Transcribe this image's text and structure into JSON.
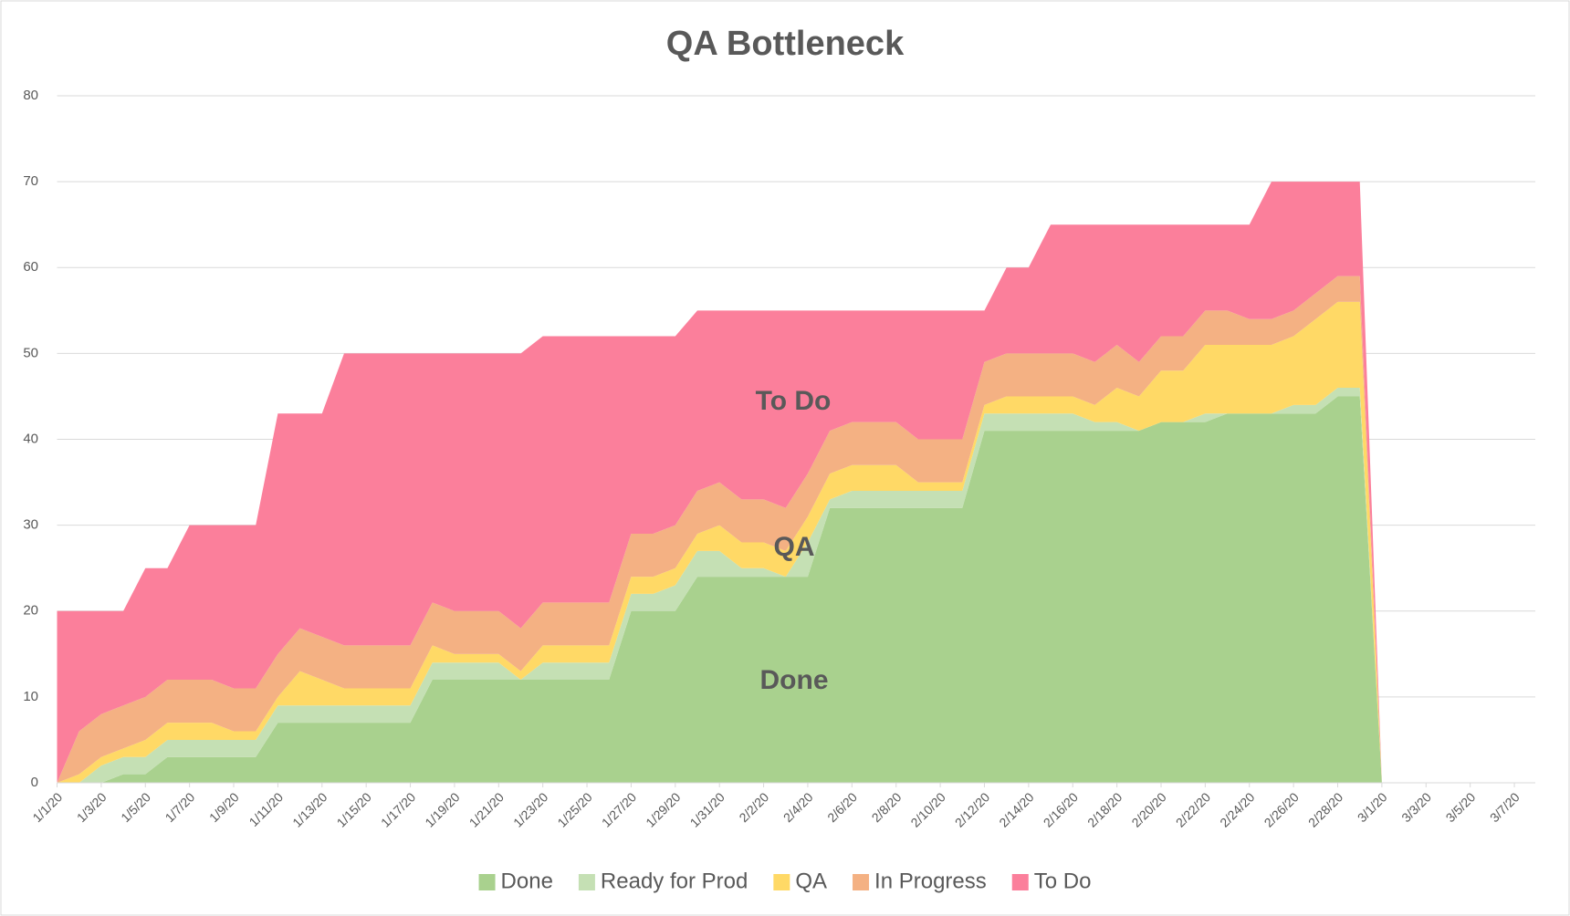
{
  "chart_data": {
    "type": "stacked_area",
    "title": "QA Bottleneck",
    "categories": [
      "1/1/20",
      null,
      "1/3/20",
      null,
      "1/5/20",
      null,
      "1/7/20",
      null,
      "1/9/20",
      null,
      "1/11/20",
      null,
      "1/13/20",
      null,
      "1/15/20",
      null,
      "1/17/20",
      null,
      "1/19/20",
      null,
      "1/21/20",
      null,
      "1/23/20",
      null,
      "1/25/20",
      null,
      "1/27/20",
      null,
      "1/29/20",
      null,
      "1/31/20",
      null,
      "2/2/20",
      null,
      "2/4/20",
      null,
      "2/6/20",
      null,
      "2/8/20",
      null,
      "2/10/20",
      null,
      "2/12/20",
      null,
      "2/14/20",
      null,
      "2/16/20",
      null,
      "2/18/20",
      null,
      "2/20/20",
      null,
      "2/22/20",
      null,
      "2/24/20",
      null,
      "2/26/20",
      null,
      "2/28/20",
      null,
      "3/1/20",
      null,
      "3/3/20",
      null,
      "3/5/20",
      null,
      "3/7/20"
    ],
    "series": [
      {
        "name": "Done",
        "color": "#a9d18e",
        "values": [
          0,
          0,
          0,
          1,
          1,
          3,
          3,
          3,
          3,
          3,
          7,
          7,
          7,
          7,
          7,
          7,
          7,
          12,
          12,
          12,
          12,
          12,
          12,
          12,
          12,
          12,
          20,
          20,
          20,
          24,
          24,
          24,
          24,
          24,
          24,
          32,
          32,
          32,
          32,
          32,
          32,
          32,
          41,
          41,
          41,
          41,
          41,
          41,
          41,
          41,
          42,
          42,
          42,
          43,
          43,
          43,
          43,
          43,
          45,
          45,
          0,
          null,
          null,
          null,
          null,
          null,
          null
        ]
      },
      {
        "name": "Ready for Prod",
        "color": "#c5e0b4",
        "values": [
          0,
          0,
          2,
          2,
          2,
          2,
          2,
          2,
          2,
          2,
          2,
          2,
          2,
          2,
          2,
          2,
          2,
          2,
          2,
          2,
          2,
          0,
          2,
          2,
          2,
          2,
          2,
          2,
          3,
          3,
          3,
          1,
          1,
          0,
          4,
          1,
          2,
          2,
          2,
          2,
          2,
          2,
          2,
          2,
          2,
          2,
          2,
          1,
          1,
          0,
          0,
          0,
          1,
          0,
          0,
          0,
          1,
          1,
          1,
          1,
          0,
          null,
          null,
          null,
          null,
          null,
          null
        ]
      },
      {
        "name": "QA",
        "color": "#ffd966",
        "values": [
          0,
          1,
          1,
          1,
          2,
          2,
          2,
          2,
          1,
          1,
          1,
          4,
          3,
          2,
          2,
          2,
          2,
          2,
          1,
          1,
          1,
          1,
          2,
          2,
          2,
          2,
          2,
          2,
          2,
          2,
          3,
          3,
          3,
          3,
          3,
          3,
          3,
          3,
          3,
          1,
          1,
          1,
          1,
          2,
          2,
          2,
          2,
          2,
          4,
          4,
          6,
          6,
          8,
          8,
          8,
          8,
          8,
          10,
          10,
          10,
          0,
          null,
          null,
          null,
          null,
          null,
          null
        ]
      },
      {
        "name": "In Progress",
        "color": "#f4b183",
        "values": [
          0,
          5,
          5,
          5,
          5,
          5,
          5,
          5,
          5,
          5,
          5,
          5,
          5,
          5,
          5,
          5,
          5,
          5,
          5,
          5,
          5,
          5,
          5,
          5,
          5,
          5,
          5,
          5,
          5,
          5,
          5,
          5,
          5,
          5,
          5,
          5,
          5,
          5,
          5,
          5,
          5,
          5,
          5,
          5,
          5,
          5,
          5,
          5,
          5,
          4,
          4,
          4,
          4,
          4,
          3,
          3,
          3,
          3,
          3,
          3,
          0,
          null,
          null,
          null,
          null,
          null,
          null
        ]
      },
      {
        "name": "To Do",
        "color": "#fb7f9b",
        "values": [
          20,
          14,
          12,
          11,
          15,
          13,
          18,
          18,
          19,
          19,
          28,
          25,
          26,
          34,
          34,
          34,
          34,
          29,
          30,
          30,
          30,
          32,
          31,
          31,
          31,
          31,
          23,
          23,
          22,
          21,
          20,
          22,
          22,
          23,
          19,
          14,
          13,
          13,
          13,
          15,
          15,
          15,
          6,
          10,
          10,
          15,
          15,
          16,
          14,
          16,
          13,
          13,
          10,
          10,
          11,
          16,
          15,
          13,
          11,
          11,
          0,
          null,
          null,
          null,
          null,
          null,
          null
        ]
      }
    ],
    "annotations": [
      "To Do",
      "QA",
      "Done"
    ],
    "ylim": [
      0,
      80
    ],
    "yticks": [
      0,
      10,
      20,
      30,
      40,
      50,
      60,
      70,
      80
    ],
    "grid": true,
    "legend": "bottom"
  }
}
